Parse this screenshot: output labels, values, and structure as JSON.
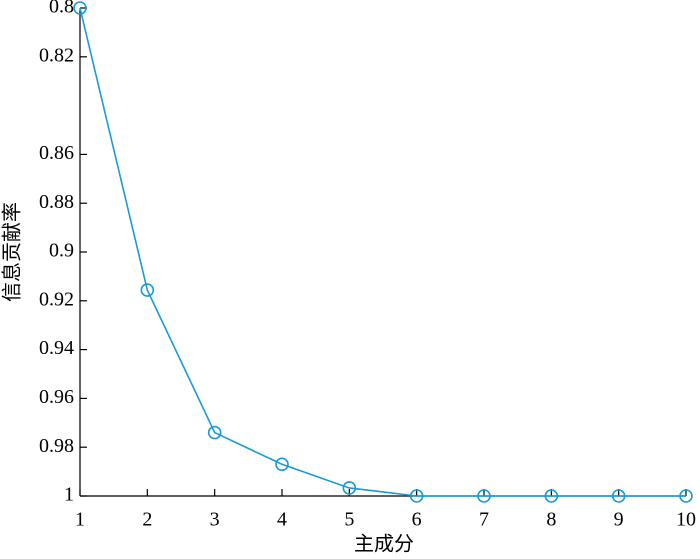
{
  "chart_data": {
    "type": "line",
    "x_label": "主成分",
    "y_label": "信息贡献率",
    "x": [
      1,
      2,
      3,
      4,
      5,
      6,
      7,
      8,
      9,
      10
    ],
    "series": [
      {
        "color": "#1a9bd7",
        "values": [
          0.8,
          0.9156,
          0.974,
          0.987,
          0.9967,
          1,
          1,
          1,
          1,
          1
        ]
      }
    ],
    "xlim": [
      1,
      10
    ],
    "xticks": [
      1,
      2,
      3,
      4,
      5,
      6,
      7,
      8,
      9,
      10
    ],
    "ylim": [
      0.8,
      1
    ],
    "y_reversed": true,
    "yticks": [
      0.8,
      0.82,
      0.86,
      0.88,
      0.9,
      0.92,
      0.94,
      0.96,
      0.98,
      1
    ],
    "markers": "circle"
  }
}
